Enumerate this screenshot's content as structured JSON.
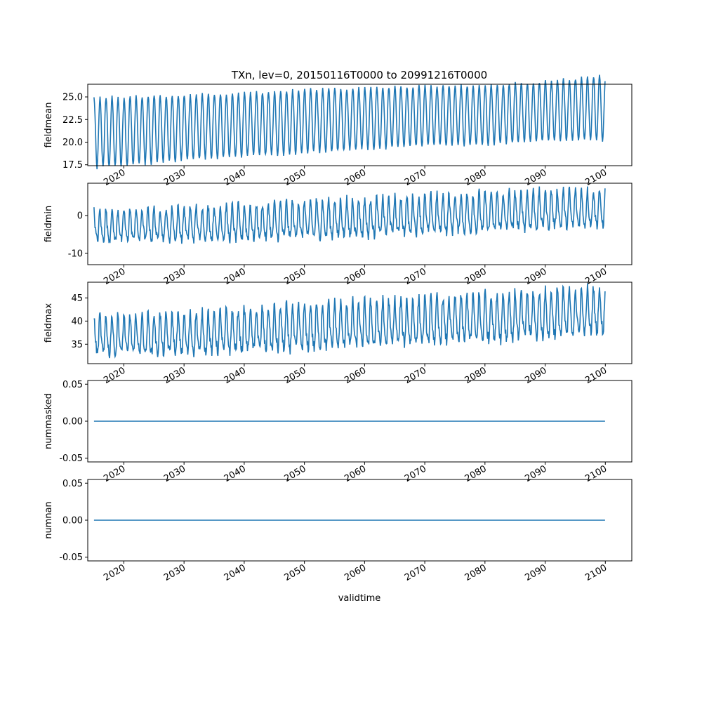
{
  "title": "TXn, lev=0, 20150116T0000 to 20991216T0000",
  "xlabel": "validtime",
  "x_ticks": [
    "2020",
    "2030",
    "2040",
    "2050",
    "2060",
    "2070",
    "2080",
    "2090",
    "2100"
  ],
  "series_color": "#1f77b4",
  "chart_data": [
    {
      "type": "line",
      "ylabel": "fieldmean",
      "xlim": [
        2014.0,
        2104.4
      ],
      "ylim": [
        17.4,
        26.4
      ],
      "yticks": [
        "17.5",
        "20.0",
        "22.5",
        "25.0"
      ],
      "x_range": [
        2015.04,
        2099.96
      ],
      "keyframes": [
        [
          2015.04,
          21.0,
          3.9
        ],
        [
          2030.0,
          21.6,
          3.6
        ],
        [
          2040.0,
          21.9,
          3.5
        ],
        [
          2050.0,
          22.3,
          3.5
        ],
        [
          2060.0,
          22.6,
          3.4
        ],
        [
          2070.0,
          22.9,
          3.3
        ],
        [
          2080.0,
          23.0,
          3.3
        ],
        [
          2090.0,
          23.4,
          3.3
        ],
        [
          2099.96,
          23.8,
          3.6
        ]
      ],
      "annual_cycle": "cosine, peak in January, period 1 year, monthly samples"
    },
    {
      "type": "line",
      "ylabel": "fieldmin",
      "xlim": [
        2014.0,
        2104.4
      ],
      "ylim": [
        -13.0,
        8.6
      ],
      "yticks": [
        "-10",
        "0"
      ],
      "x_range": [
        2015.04,
        2099.96
      ],
      "keyframes": [
        [
          2015.04,
          -3.2,
          3.8
        ],
        [
          2030.0,
          -2.6,
          4.1
        ],
        [
          2040.0,
          -2.3,
          4.3
        ],
        [
          2050.0,
          -1.5,
          4.6
        ],
        [
          2060.0,
          -1.0,
          4.7
        ],
        [
          2070.0,
          -0.2,
          4.6
        ],
        [
          2080.0,
          0.4,
          4.8
        ],
        [
          2090.0,
          1.1,
          4.6
        ],
        [
          2099.96,
          1.6,
          4.4
        ]
      ],
      "annual_cycle": "cosine, peak in January, period 1 year, monthly samples, irregular"
    },
    {
      "type": "line",
      "ylabel": "fieldmax",
      "xlim": [
        2014.0,
        2104.4
      ],
      "ylim": [
        30.8,
        48.4
      ],
      "yticks": [
        "35",
        "40",
        "45"
      ],
      "x_range": [
        2015.04,
        2099.96
      ],
      "keyframes": [
        [
          2015.04,
          36.5,
          4.0
        ],
        [
          2030.0,
          36.8,
          4.0
        ],
        [
          2040.0,
          37.6,
          4.3
        ],
        [
          2050.0,
          38.2,
          4.5
        ],
        [
          2060.0,
          38.9,
          4.6
        ],
        [
          2070.0,
          39.6,
          4.4
        ],
        [
          2080.0,
          40.3,
          4.9
        ],
        [
          2090.0,
          41.0,
          4.6
        ],
        [
          2099.96,
          41.9,
          4.5
        ]
      ],
      "annual_cycle": "cosine, peak in January, period 1 year, monthly samples, irregular"
    },
    {
      "type": "line",
      "ylabel": "nummasked",
      "xlim": [
        2014.0,
        2104.4
      ],
      "ylim": [
        -0.055,
        0.055
      ],
      "yticks": [
        "-0.05",
        "0.00",
        "0.05"
      ],
      "x_range": [
        2015.04,
        2099.96
      ],
      "constant_value": 0.0
    },
    {
      "type": "line",
      "ylabel": "numnan",
      "xlim": [
        2014.0,
        2104.4
      ],
      "ylim": [
        -0.055,
        0.055
      ],
      "yticks": [
        "-0.05",
        "0.00",
        "0.05"
      ],
      "x_range": [
        2015.04,
        2099.96
      ],
      "constant_value": 0.0
    }
  ]
}
